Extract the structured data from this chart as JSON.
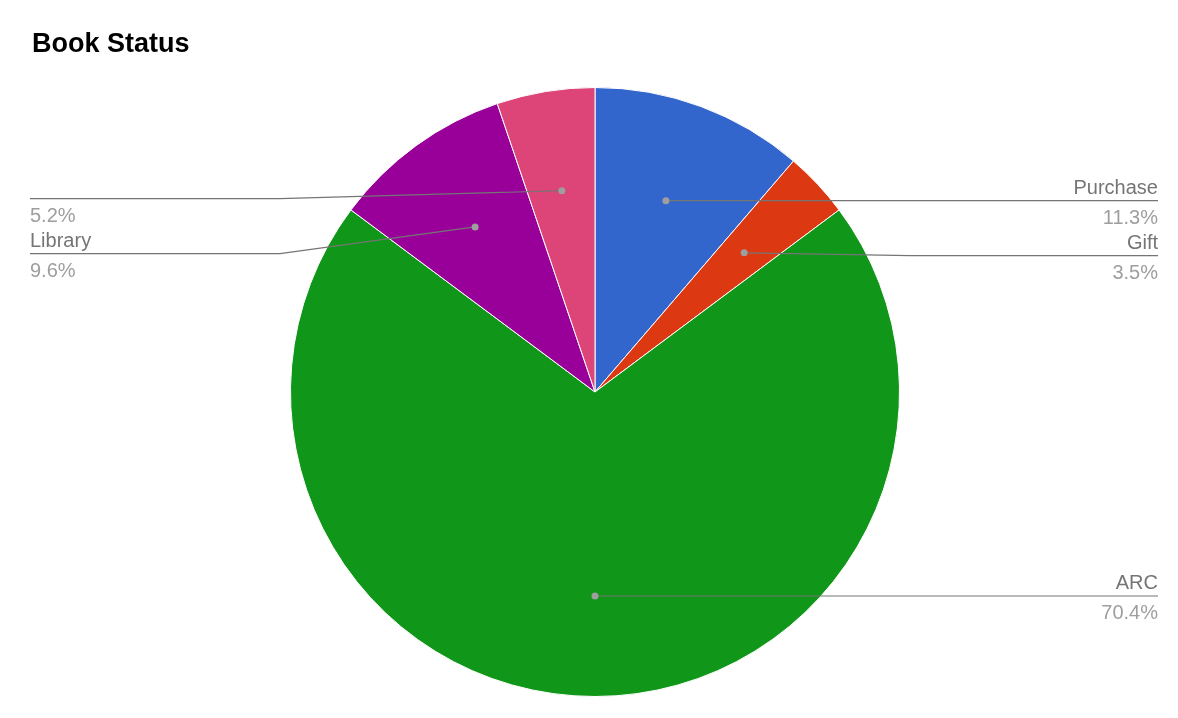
{
  "chart_data": {
    "type": "pie",
    "title": "Book Status",
    "categories": [
      "Purchase",
      "Gift",
      "ARC",
      "Library",
      null
    ],
    "values": [
      11.3,
      3.5,
      70.4,
      9.6,
      5.2
    ],
    "colors": [
      "#3366cc",
      "#dc3912",
      "#109618",
      "#990099",
      "#dd4477"
    ],
    "value_labels": [
      "11.3%",
      "3.5%",
      "70.4%",
      "9.6%",
      "5.2%"
    ],
    "legend": false
  }
}
